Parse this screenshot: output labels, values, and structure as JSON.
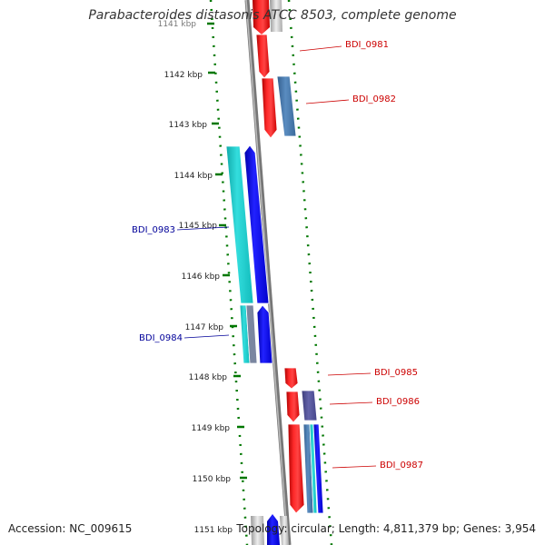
{
  "header": {
    "title": "Parabacteroides distasonis ATCC 8503, complete genome"
  },
  "footer": {
    "accession": "Accession: NC_009615",
    "stats": "Topology: circular; Length: 4,811,379 bp; Genes: 3,954"
  },
  "ruler": {
    "unit": "kbp",
    "ticks": [
      "1141 kbp",
      "1142 kbp",
      "1143 kbp",
      "1144 kbp",
      "1145 kbp",
      "1146 kbp",
      "1147 kbp",
      "1148 kbp",
      "1149 kbp",
      "1150 kbp",
      "1151 kbp"
    ]
  },
  "genes": [
    {
      "name": "BDI_0981",
      "color": "#cc0000",
      "side": "right"
    },
    {
      "name": "BDI_0982",
      "color": "#cc0000",
      "side": "right"
    },
    {
      "name": "BDI_0983",
      "color": "#000099",
      "side": "left"
    },
    {
      "name": "BDI_0984",
      "color": "#000099",
      "side": "left"
    },
    {
      "name": "BDI_0985",
      "color": "#cc0000",
      "side": "right"
    },
    {
      "name": "BDI_0986",
      "color": "#cc0000",
      "side": "right"
    },
    {
      "name": "BDI_0987",
      "color": "#cc0000",
      "side": "right"
    }
  ],
  "colors": {
    "forward_gene": "#ff0000",
    "reverse_gene": "#0000ff",
    "cyan_track": "#22cccc",
    "steel_track": "#4477aa",
    "slate_track": "#555599",
    "backbone": "#777777",
    "tick_mark": "#007700"
  }
}
